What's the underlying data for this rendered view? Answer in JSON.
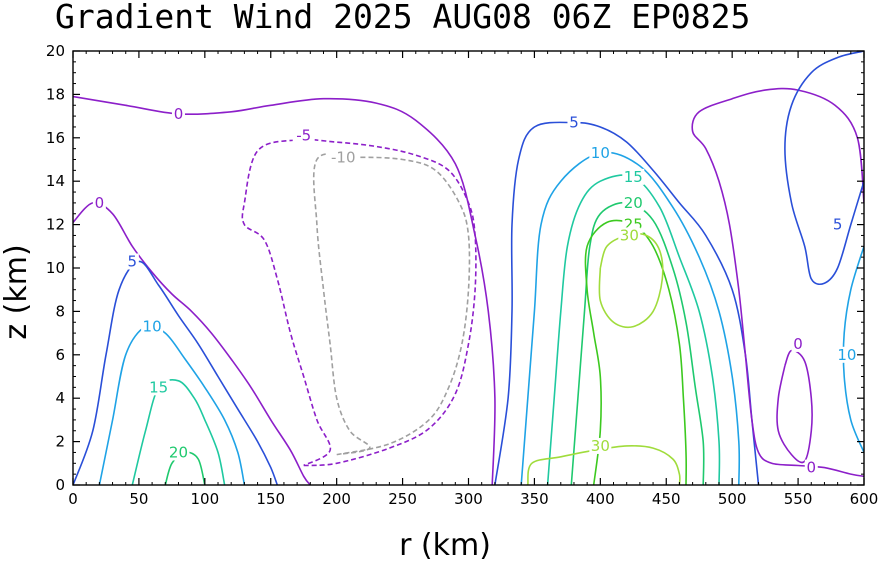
{
  "title": "Gradient Wind 2025 AUG08 06Z   EP0825",
  "chart_data": {
    "type": "contour",
    "title": "Gradient Wind 2025 AUG08 06Z   EP0825",
    "xlabel": "r (km)",
    "ylabel": "z (km)",
    "xlim": [
      0,
      600
    ],
    "ylim": [
      0,
      20
    ],
    "xticks": [
      0,
      50,
      100,
      150,
      200,
      250,
      300,
      350,
      400,
      450,
      500,
      550,
      600
    ],
    "yticks": [
      0,
      2,
      4,
      6,
      8,
      10,
      12,
      14,
      16,
      18,
      20
    ],
    "contour_interval": 5,
    "negative_dashed": true,
    "levels": [
      {
        "level": -10,
        "color": "#a0a0a0",
        "dashed": true
      },
      {
        "level": -5,
        "color": "#8c1fc9",
        "dashed": true
      },
      {
        "level": 0,
        "color": "#8c1fc9",
        "dashed": false
      },
      {
        "level": 5,
        "color": "#2a4fd8",
        "dashed": false
      },
      {
        "level": 10,
        "color": "#1fa3e6",
        "dashed": false
      },
      {
        "level": 15,
        "color": "#1fc9a0",
        "dashed": false
      },
      {
        "level": 20,
        "color": "#1fc96e",
        "dashed": false
      },
      {
        "level": 25,
        "color": "#3cc91f",
        "dashed": false
      },
      {
        "level": 30,
        "color": "#a0dc3c",
        "dashed": false
      }
    ],
    "contours": [
      {
        "level": 0,
        "label": "0",
        "points": [
          [
            0,
            17.9
          ],
          [
            40,
            17.5
          ],
          [
            80,
            17.1
          ],
          [
            120,
            17.2
          ],
          [
            150,
            17.5
          ],
          [
            190,
            17.8
          ],
          [
            230,
            17.6
          ],
          [
            260,
            16.8
          ],
          [
            290,
            14.8
          ],
          [
            305,
            11.5
          ],
          [
            315,
            8
          ],
          [
            320,
            4
          ],
          [
            318,
            0
          ]
        ],
        "label_at": [
          80,
          17.1
        ]
      },
      {
        "level": 0,
        "label": "0",
        "points": [
          [
            0,
            12.1
          ],
          [
            15,
            13.0
          ],
          [
            30,
            12.5
          ],
          [
            45,
            11.0
          ],
          [
            60,
            9.8
          ],
          [
            75,
            8.8
          ],
          [
            90,
            8.0
          ],
          [
            105,
            7.0
          ],
          [
            120,
            5.8
          ],
          [
            135,
            4.5
          ],
          [
            150,
            3.0
          ],
          [
            165,
            1.6
          ],
          [
            175,
            0.4
          ],
          [
            180,
            0
          ]
        ],
        "label_at": [
          20,
          13.0
        ]
      },
      {
        "level": -5,
        "label": "-5",
        "points": [
          [
            175,
            0.9
          ],
          [
            200,
            1.0
          ],
          [
            240,
            1.7
          ],
          [
            270,
            2.6
          ],
          [
            290,
            4.2
          ],
          [
            300,
            6.5
          ],
          [
            305,
            9.0
          ],
          [
            305,
            11.5
          ],
          [
            300,
            13.0
          ],
          [
            285,
            14.5
          ],
          [
            260,
            15.2
          ],
          [
            230,
            15.6
          ],
          [
            200,
            15.8
          ],
          [
            170,
            15.9
          ],
          [
            140,
            15.4
          ],
          [
            130,
            13.0
          ],
          [
            130,
            12.0
          ],
          [
            145,
            11.3
          ],
          [
            155,
            9.5
          ],
          [
            165,
            7.0
          ],
          [
            175,
            5.0
          ],
          [
            185,
            3.0
          ],
          [
            195,
            1.6
          ],
          [
            175,
            0.9
          ]
        ],
        "label_at": [
          175,
          16.1
        ]
      },
      {
        "level": -10,
        "label": "-10",
        "points": [
          [
            200,
            1.4
          ],
          [
            240,
            1.9
          ],
          [
            270,
            3.0
          ],
          [
            285,
            4.5
          ],
          [
            295,
            6.5
          ],
          [
            300,
            9.0
          ],
          [
            300,
            11.5
          ],
          [
            293,
            13.0
          ],
          [
            275,
            14.5
          ],
          [
            250,
            15.0
          ],
          [
            215,
            15.1
          ],
          [
            185,
            15.0
          ],
          [
            185,
            12.0
          ],
          [
            190,
            9.0
          ],
          [
            195,
            6.5
          ],
          [
            200,
            4.0
          ],
          [
            210,
            2.5
          ],
          [
            225,
            1.7
          ],
          [
            200,
            1.4
          ]
        ],
        "label_at": [
          205,
          15.1
        ]
      },
      {
        "level": 5,
        "label": "5",
        "points": [
          [
            0,
            0
          ],
          [
            15,
            2.5
          ],
          [
            25,
            6.0
          ],
          [
            35,
            9.0
          ],
          [
            50,
            10.3
          ],
          [
            65,
            9.2
          ],
          [
            80,
            7.8
          ],
          [
            95,
            6.5
          ],
          [
            110,
            5.0
          ],
          [
            125,
            3.5
          ],
          [
            140,
            2.0
          ],
          [
            150,
            0.8
          ],
          [
            155,
            0
          ]
        ],
        "label_at": [
          45,
          10.3
        ]
      },
      {
        "level": 10,
        "label": "10",
        "points": [
          [
            20,
            0
          ],
          [
            30,
            3.0
          ],
          [
            40,
            6.0
          ],
          [
            55,
            7.3
          ],
          [
            70,
            7.0
          ],
          [
            85,
            5.8
          ],
          [
            100,
            4.5
          ],
          [
            115,
            3.0
          ],
          [
            125,
            1.5
          ],
          [
            130,
            0
          ]
        ],
        "label_at": [
          60,
          7.3
        ]
      },
      {
        "level": 15,
        "label": "15",
        "points": [
          [
            45,
            0
          ],
          [
            55,
            2.5
          ],
          [
            65,
            4.5
          ],
          [
            80,
            4.8
          ],
          [
            92,
            4.0
          ],
          [
            100,
            3.0
          ],
          [
            110,
            1.5
          ],
          [
            115,
            0
          ]
        ],
        "label_at": [
          65,
          4.5
        ]
      },
      {
        "level": 20,
        "label": "20",
        "points": [
          [
            70,
            0
          ],
          [
            75,
            1.0
          ],
          [
            85,
            1.5
          ],
          [
            95,
            1.2
          ],
          [
            100,
            0
          ]
        ],
        "label_at": [
          80,
          1.5
        ]
      },
      {
        "level": 5,
        "label": "5",
        "points": [
          [
            320,
            0
          ],
          [
            330,
            4.0
          ],
          [
            333,
            8.0
          ],
          [
            333,
            12.0
          ],
          [
            338,
            15.0
          ],
          [
            350,
            16.5
          ],
          [
            380,
            16.7
          ],
          [
            400,
            16.5
          ],
          [
            420,
            15.8
          ],
          [
            440,
            14.5
          ],
          [
            460,
            13.0
          ],
          [
            480,
            11.5
          ],
          [
            500,
            9.0
          ],
          [
            510,
            6.0
          ],
          [
            515,
            3.0
          ],
          [
            520,
            0
          ]
        ],
        "label_at": [
          380,
          16.7
        ]
      },
      {
        "level": 10,
        "label": "10",
        "points": [
          [
            340,
            0
          ],
          [
            345,
            4.0
          ],
          [
            350,
            8.0
          ],
          [
            355,
            12.0
          ],
          [
            370,
            14.0
          ],
          [
            400,
            15.3
          ],
          [
            430,
            14.7
          ],
          [
            455,
            12.8
          ],
          [
            475,
            10.5
          ],
          [
            490,
            8.0
          ],
          [
            500,
            5.0
          ],
          [
            505,
            2.0
          ],
          [
            505,
            0
          ]
        ],
        "label_at": [
          400,
          15.3
        ]
      },
      {
        "level": 15,
        "label": "15",
        "points": [
          [
            360,
            0
          ],
          [
            365,
            4.0
          ],
          [
            370,
            8.0
          ],
          [
            375,
            11.0
          ],
          [
            385,
            13.0
          ],
          [
            400,
            14.0
          ],
          [
            425,
            14.2
          ],
          [
            445,
            12.8
          ],
          [
            460,
            10.5
          ],
          [
            475,
            8.0
          ],
          [
            485,
            5.0
          ],
          [
            490,
            2.0
          ],
          [
            490,
            0
          ]
        ],
        "label_at": [
          425,
          14.2
        ]
      },
      {
        "level": 20,
        "label": "20",
        "points": [
          [
            378,
            0
          ],
          [
            383,
            4.0
          ],
          [
            388,
            8.0
          ],
          [
            392,
            11.0
          ],
          [
            400,
            12.5
          ],
          [
            420,
            13.0
          ],
          [
            440,
            12.2
          ],
          [
            455,
            10.0
          ],
          [
            465,
            7.5
          ],
          [
            472,
            4.5
          ],
          [
            478,
            2.0
          ],
          [
            478,
            0
          ]
        ],
        "label_at": [
          425,
          13.0
        ]
      },
      {
        "level": 25,
        "label": "25",
        "points": [
          [
            395,
            0
          ],
          [
            400,
            2.5
          ],
          [
            400,
            5.0
          ],
          [
            395,
            7.0
          ],
          [
            390,
            9.0
          ],
          [
            390,
            11.0
          ],
          [
            405,
            12.1
          ],
          [
            425,
            12.0
          ],
          [
            440,
            11.0
          ],
          [
            452,
            9.0
          ],
          [
            460,
            6.5
          ],
          [
            463,
            4.0
          ],
          [
            465,
            1.5
          ],
          [
            465,
            0
          ]
        ],
        "label_at": [
          425,
          12.0
        ]
      },
      {
        "level": 30,
        "label": "30",
        "points": [
          [
            400,
            10.0
          ],
          [
            400,
            8.5
          ],
          [
            410,
            7.5
          ],
          [
            425,
            7.3
          ],
          [
            440,
            8.0
          ],
          [
            447,
            9.5
          ],
          [
            445,
            10.8
          ],
          [
            435,
            11.5
          ],
          [
            420,
            11.5
          ],
          [
            405,
            11.0
          ],
          [
            400,
            10.0
          ]
        ],
        "label_at": [
          422,
          11.5
        ]
      },
      {
        "level": 30,
        "label": "30",
        "points": [
          [
            345,
            0
          ],
          [
            348,
            1.0
          ],
          [
            370,
            1.3
          ],
          [
            395,
            1.6
          ],
          [
            420,
            1.8
          ],
          [
            440,
            1.7
          ],
          [
            455,
            1.2
          ],
          [
            460,
            0.5
          ],
          [
            460,
            0
          ]
        ],
        "label_at": [
          400,
          1.8
        ]
      },
      {
        "level": 0,
        "label": "0",
        "points": [
          [
            600,
            13.0
          ],
          [
            595,
            16.0
          ],
          [
            578,
            17.5
          ],
          [
            550,
            18.2
          ],
          [
            525,
            18.2
          ],
          [
            500,
            17.8
          ],
          [
            475,
            17.2
          ],
          [
            470,
            16.3
          ],
          [
            480,
            15.5
          ],
          [
            490,
            14.0
          ],
          [
            498,
            12.0
          ],
          [
            505,
            9.0
          ],
          [
            510,
            6.0
          ],
          [
            515,
            3.0
          ],
          [
            520,
            1.5
          ],
          [
            530,
            1.0
          ],
          [
            550,
            0.9
          ],
          [
            570,
            0.8
          ],
          [
            590,
            0.5
          ],
          [
            600,
            0.4
          ]
        ],
        "label_at": [
          560,
          0.8
        ]
      },
      {
        "level": 0,
        "label": "0",
        "points": [
          [
            540,
            5.5
          ],
          [
            535,
            4.0
          ],
          [
            535,
            2.5
          ],
          [
            545,
            1.4
          ],
          [
            555,
            1.1
          ],
          [
            560,
            2.5
          ],
          [
            560,
            4.0
          ],
          [
            555,
            5.7
          ],
          [
            545,
            6.2
          ],
          [
            540,
            5.5
          ]
        ],
        "label_at": [
          550,
          6.5
        ]
      },
      {
        "level": 5,
        "label": "5",
        "points": [
          [
            600,
            14.0
          ],
          [
            590,
            12.0
          ],
          [
            580,
            10.0
          ],
          [
            570,
            9.3
          ],
          [
            560,
            9.5
          ],
          [
            555,
            11.0
          ],
          [
            545,
            13.0
          ],
          [
            540,
            15.5
          ],
          [
            545,
            17.5
          ],
          [
            560,
            19.0
          ],
          [
            580,
            19.7
          ],
          [
            600,
            20.0
          ]
        ],
        "label_at": [
          580,
          12.0
        ]
      },
      {
        "level": 10,
        "label": "10",
        "points": [
          [
            600,
            11.0
          ],
          [
            590,
            9.0
          ],
          [
            585,
            7.0
          ],
          [
            585,
            5.0
          ],
          [
            590,
            3.0
          ],
          [
            600,
            1.5
          ]
        ],
        "label_at": [
          587,
          6.0
        ]
      }
    ]
  }
}
